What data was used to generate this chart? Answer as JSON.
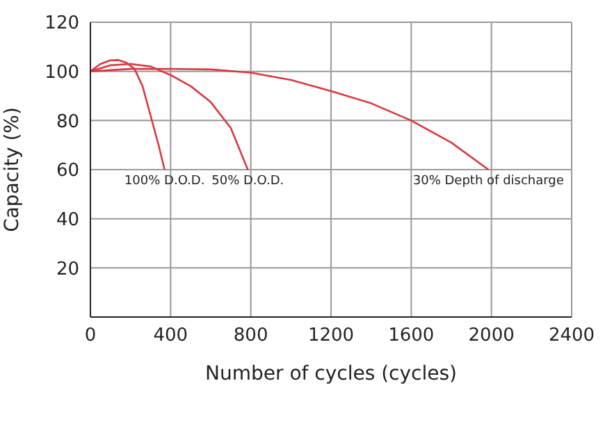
{
  "chart_data": {
    "type": "line",
    "xlabel": "Number of cycles (cycles)",
    "ylabel": "Capacity (%)",
    "xlim": [
      0,
      2400
    ],
    "xticks": [
      0,
      400,
      800,
      1200,
      1600,
      2000,
      2400
    ],
    "ylim": [
      0,
      120
    ],
    "yticks": [
      {
        "value": 0,
        "label": null
      },
      20,
      40,
      60,
      80,
      100,
      120
    ],
    "grid": true,
    "marker": "none",
    "line_style": "solid",
    "series": [
      {
        "color": "#d9383f",
        "x": [
          0,
          50,
          100,
          140,
          180,
          220,
          260,
          300,
          340,
          370
        ],
        "values": [
          100,
          103,
          104.5,
          104.6,
          103.5,
          101,
          94,
          82,
          70,
          60
        ]
      },
      {
        "color": "#d9383f",
        "x": [
          0,
          100,
          200,
          300,
          400,
          500,
          600,
          700,
          785
        ],
        "values": [
          100,
          102.5,
          103,
          102,
          98.5,
          94,
          87.5,
          77,
          60
        ]
      },
      {
        "color": "#d9383f",
        "x": [
          0,
          200,
          400,
          600,
          800,
          1000,
          1200,
          1400,
          1600,
          1800,
          1985
        ],
        "values": [
          100,
          101,
          101,
          100.8,
          99.5,
          96.5,
          92,
          87,
          80,
          71,
          60
        ]
      }
    ],
    "annotations": [
      {
        "text": "100% D.O.D.",
        "x": 370,
        "y": 60
      },
      {
        "text": "50% D.O.D.",
        "x": 785,
        "y": 60
      },
      {
        "text": "30% Depth of discharge",
        "x": 1985,
        "y": 60
      }
    ]
  }
}
